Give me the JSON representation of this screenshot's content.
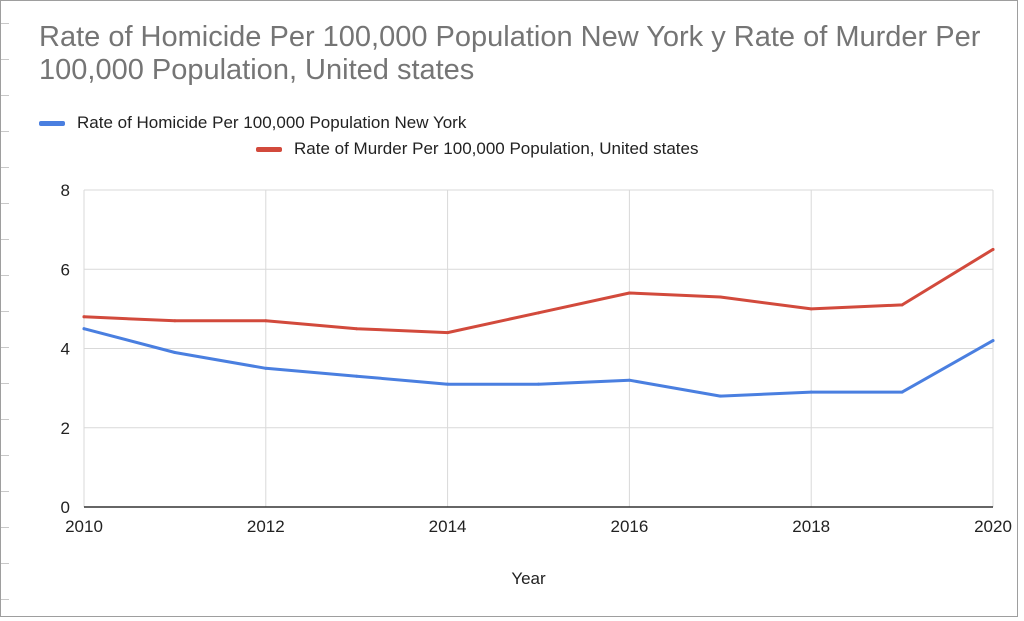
{
  "colors": {
    "series_1": "#4a7fe0",
    "series_2": "#d24a3c",
    "grid": "#d9d9d9",
    "axis": "#333333",
    "title": "#757575"
  },
  "chart_data": {
    "type": "line",
    "title": "Rate of Homicide Per 100,000 Population New York y Rate of Murder Per 100,000 Population, United states",
    "xlabel": "Year",
    "ylabel": "",
    "xlim": [
      2010,
      2020
    ],
    "ylim": [
      0,
      8
    ],
    "xticks": [
      "2010",
      "2012",
      "2014",
      "2016",
      "2018",
      "2020"
    ],
    "yticks": [
      "0",
      "2",
      "4",
      "6",
      "8"
    ],
    "grid": true,
    "legend_position": "top",
    "x": [
      2010,
      2011,
      2012,
      2013,
      2014,
      2015,
      2016,
      2017,
      2018,
      2019,
      2020
    ],
    "series": [
      {
        "name": "Rate of Homicide Per 100,000 Population New York",
        "color": "#4a7fe0",
        "values": [
          4.5,
          3.9,
          3.5,
          3.3,
          3.1,
          3.1,
          3.2,
          2.8,
          2.9,
          2.9,
          4.2
        ]
      },
      {
        "name": "Rate of Murder Per 100,000 Population, United states",
        "color": "#d24a3c",
        "values": [
          4.8,
          4.7,
          4.7,
          4.5,
          4.4,
          4.9,
          5.4,
          5.3,
          5.0,
          5.1,
          6.5
        ]
      }
    ]
  }
}
